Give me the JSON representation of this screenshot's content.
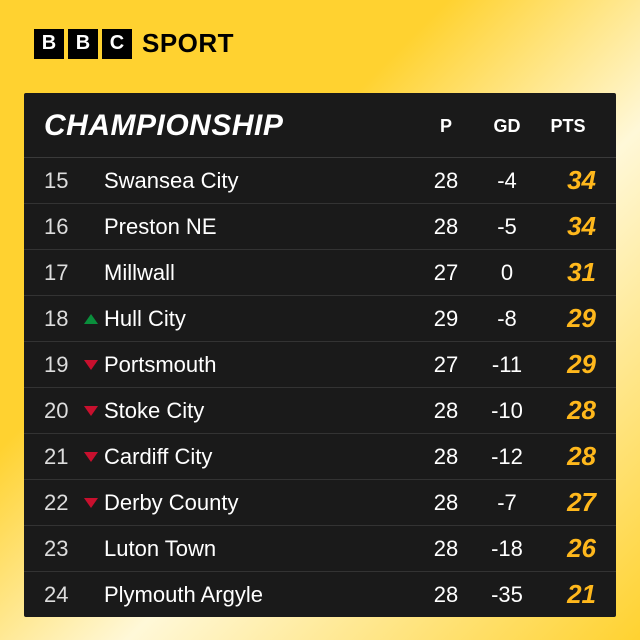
{
  "brand": {
    "blocks": [
      "B",
      "B",
      "C"
    ],
    "sport": "SPORT"
  },
  "table": {
    "title": "CHAMPIONSHIP",
    "headers": {
      "p": "P",
      "gd": "GD",
      "pts": "PTS"
    },
    "colors": {
      "bg": "#1a1a1a",
      "row_border": "#333333",
      "text": "#ffffff",
      "pos_text": "#dddddd",
      "pts_text": "#ffb81c",
      "up": "#0a8f3c",
      "down": "#c8102e",
      "page_bg_from": "#ffd230",
      "page_bg_mid": "#fff8d8"
    },
    "fontsize": {
      "title": 30,
      "header": 18,
      "body": 22,
      "pts": 26
    },
    "rows": [
      {
        "pos": "15",
        "move": "",
        "team": "Swansea City",
        "p": "28",
        "gd": "-4",
        "pts": "34"
      },
      {
        "pos": "16",
        "move": "",
        "team": "Preston NE",
        "p": "28",
        "gd": "-5",
        "pts": "34"
      },
      {
        "pos": "17",
        "move": "",
        "team": "Millwall",
        "p": "27",
        "gd": "0",
        "pts": "31"
      },
      {
        "pos": "18",
        "move": "up",
        "team": "Hull City",
        "p": "29",
        "gd": "-8",
        "pts": "29"
      },
      {
        "pos": "19",
        "move": "down",
        "team": "Portsmouth",
        "p": "27",
        "gd": "-11",
        "pts": "29"
      },
      {
        "pos": "20",
        "move": "down",
        "team": "Stoke City",
        "p": "28",
        "gd": "-10",
        "pts": "28"
      },
      {
        "pos": "21",
        "move": "down",
        "team": "Cardiff City",
        "p": "28",
        "gd": "-12",
        "pts": "28"
      },
      {
        "pos": "22",
        "move": "down",
        "team": "Derby County",
        "p": "28",
        "gd": "-7",
        "pts": "27"
      },
      {
        "pos": "23",
        "move": "",
        "team": "Luton Town",
        "p": "28",
        "gd": "-18",
        "pts": "26"
      },
      {
        "pos": "24",
        "move": "",
        "team": "Plymouth Argyle",
        "p": "28",
        "gd": "-35",
        "pts": "21"
      }
    ]
  }
}
